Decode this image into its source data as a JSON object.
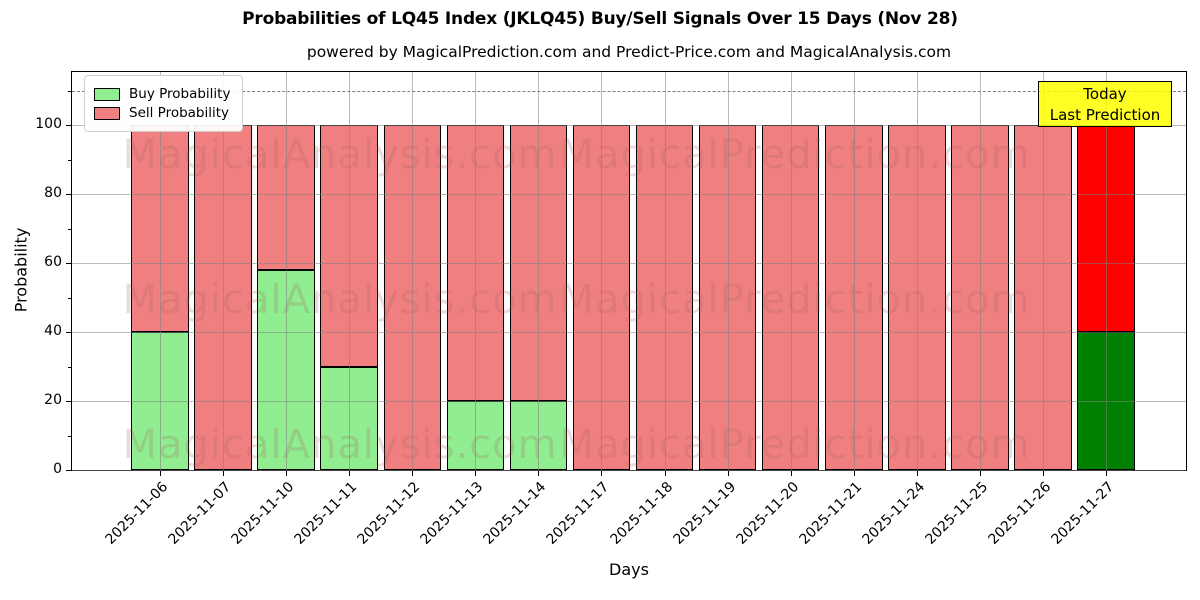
{
  "chart_data": {
    "type": "bar",
    "stacked": true,
    "title": "Probabilities of LQ45 Index (JKLQ45) Buy/Sell Signals Over 15 Days (Nov 28)",
    "subtitle": "powered by MagicalPrediction.com and Predict-Price.com and MagicalAnalysis.com",
    "xlabel": "Days",
    "ylabel": "Probability",
    "categories": [
      "2025-11-06",
      "2025-11-07",
      "2025-11-10",
      "2025-11-11",
      "2025-11-12",
      "2025-11-13",
      "2025-11-14",
      "2025-11-17",
      "2025-11-18",
      "2025-11-19",
      "2025-11-20",
      "2025-11-21",
      "2025-11-24",
      "2025-11-25",
      "2025-11-26",
      "2025-11-27"
    ],
    "series": [
      {
        "name": "Buy Probability",
        "color": "#90ee90",
        "values": [
          40,
          0,
          58,
          30,
          0,
          20,
          20,
          0,
          0,
          0,
          0,
          0,
          0,
          0,
          0,
          40
        ]
      },
      {
        "name": "Sell Probability",
        "color": "#f08080",
        "values": [
          60,
          100,
          42,
          70,
          100,
          80,
          80,
          100,
          100,
          100,
          100,
          100,
          100,
          100,
          100,
          60
        ]
      }
    ],
    "today_bar": {
      "index": 15,
      "buy_color": "#008000",
      "sell_color": "#ff0000"
    },
    "yticks": [
      0,
      20,
      40,
      60,
      80,
      100
    ],
    "yticks_minor": [
      10,
      30,
      50,
      70,
      90,
      110
    ],
    "ylim": [
      0,
      115
    ],
    "dashed_line_y": 110,
    "grid": true,
    "legend_position": "upper left",
    "annotation": {
      "line1": "Today",
      "line2": "Last Prediction",
      "bg_color": "#ffff00"
    },
    "watermark_left": "MagicalAnalysis.com",
    "watermark_right": "MagicalPrediction.com",
    "edge_color": "#000000"
  }
}
